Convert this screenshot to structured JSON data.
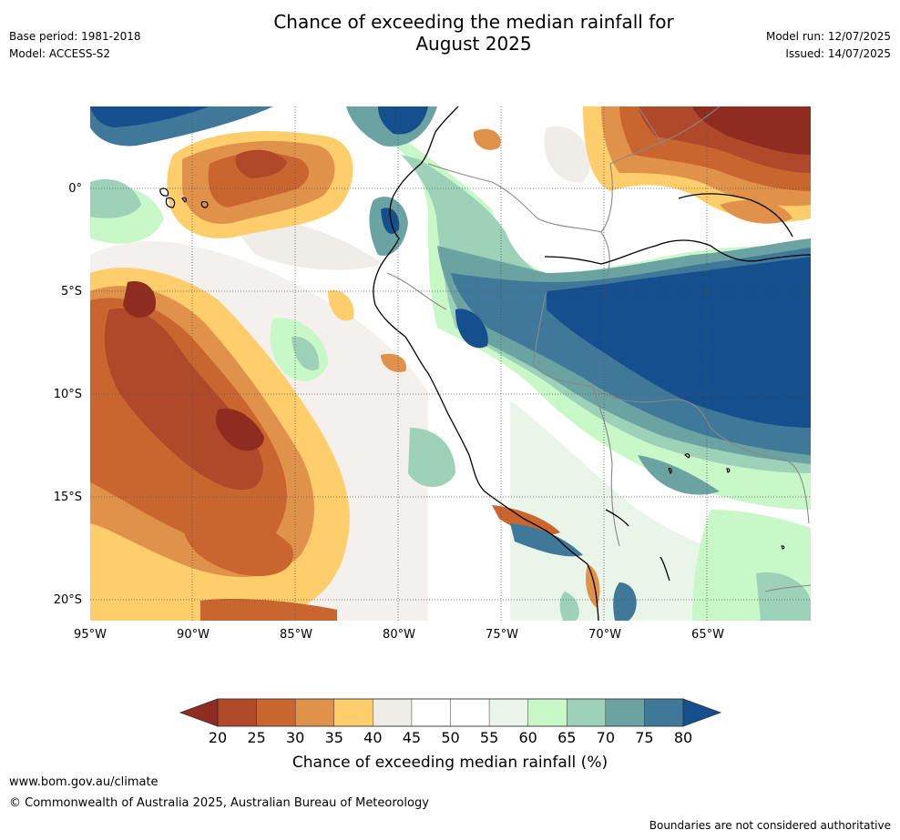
{
  "header": {
    "title_line1": "Chance of exceeding the median rainfall for",
    "title_line2": "August 2025",
    "base_period": "Base period: 1981-2018",
    "model": "Model: ACCESS-S2",
    "model_run": "Model run: 12/07/2025",
    "issued": "Issued: 14/07/2025"
  },
  "map": {
    "lon_labels": [
      "95°W",
      "90°W",
      "85°W",
      "80°W",
      "75°W",
      "70°W",
      "65°W"
    ],
    "lat_labels": [
      "0°",
      "5°S",
      "10°S",
      "15°S",
      "20°S"
    ],
    "colors": {
      "ocean_low": "#f0ece8",
      "dry_20": "#8e2c1f",
      "dry_25": "#b0482a",
      "dry_30": "#c9652f",
      "dry_35": "#e0924a",
      "dry_40": "#fdce6b",
      "neutral_45": "#f0ece8",
      "neutral_50": "#ffffff",
      "neutral_55": "#ffffff",
      "wet_60": "#eaf5ea",
      "wet_65": "#c8f7c8",
      "wet_70": "#9dd2b9",
      "wet_75": "#6aa3a2",
      "wet_80": "#3f7898",
      "wet_max": "#154f8d"
    }
  },
  "colorbar": {
    "ticks": [
      "20",
      "25",
      "30",
      "35",
      "40",
      "45",
      "50",
      "55",
      "60",
      "65",
      "70",
      "75",
      "80"
    ],
    "title": "Chance of exceeding median rainfall (%)",
    "colors": [
      "#b0482a",
      "#c9652f",
      "#e0924a",
      "#fdce6b",
      "#f0ece8",
      "#ffffff",
      "#ffffff",
      "#eaf5ea",
      "#c8f7c8",
      "#9dd2b9",
      "#6aa3a2",
      "#3f7898"
    ],
    "low_extend_color": "#8e2c1f",
    "high_extend_color": "#154f8d"
  },
  "footer": {
    "website": "www.bom.gov.au/climate",
    "copyright": "© Commonwealth of Australia 2025, Australian Bureau of Meteorology",
    "disclaimer": "Boundaries are not considered authoritative"
  }
}
